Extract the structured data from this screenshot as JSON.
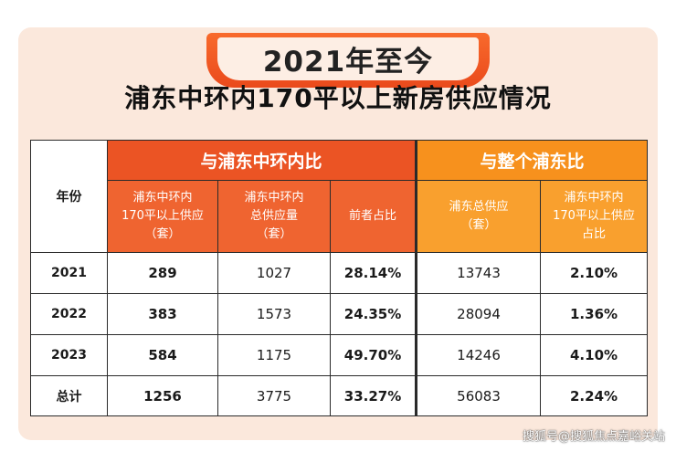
{
  "banner": {
    "title": "2021年至今"
  },
  "subtitle": "浦东中环内170平以上新房供应情况",
  "table": {
    "year_header": "年份",
    "group_a_header": "与浦东中环内比",
    "group_b_header": "与整个浦东比",
    "col1_header": "浦东中环内\n170平以上供应\n（套）",
    "col2_header": "浦东中环内\n总供应量\n（套）",
    "col3_header": "前者占比",
    "col4_header": "浦东总供应\n（套）",
    "col5_header": "浦东中环内\n170平以上供应\n占比",
    "rows": [
      {
        "year": "2021",
        "c1": "289",
        "c2": "1027",
        "c3": "28.14%",
        "c4": "13743",
        "c5": "2.10%"
      },
      {
        "year": "2022",
        "c1": "383",
        "c2": "1573",
        "c3": "24.35%",
        "c4": "28094",
        "c5": "1.36%"
      },
      {
        "year": "2023",
        "c1": "584",
        "c2": "1175",
        "c3": "49.70%",
        "c4": "14246",
        "c5": "4.10%"
      },
      {
        "year": "总计",
        "c1": "1256",
        "c2": "3775",
        "c3": "33.27%",
        "c4": "56083",
        "c5": "2.24%"
      }
    ]
  },
  "watermark": "搜狐号@搜狐焦点嘉峪关站",
  "colors": {
    "card_bg": "#fbe8dc",
    "accent_red_orange": "#eb5424",
    "accent_orange": "#f7911d"
  }
}
